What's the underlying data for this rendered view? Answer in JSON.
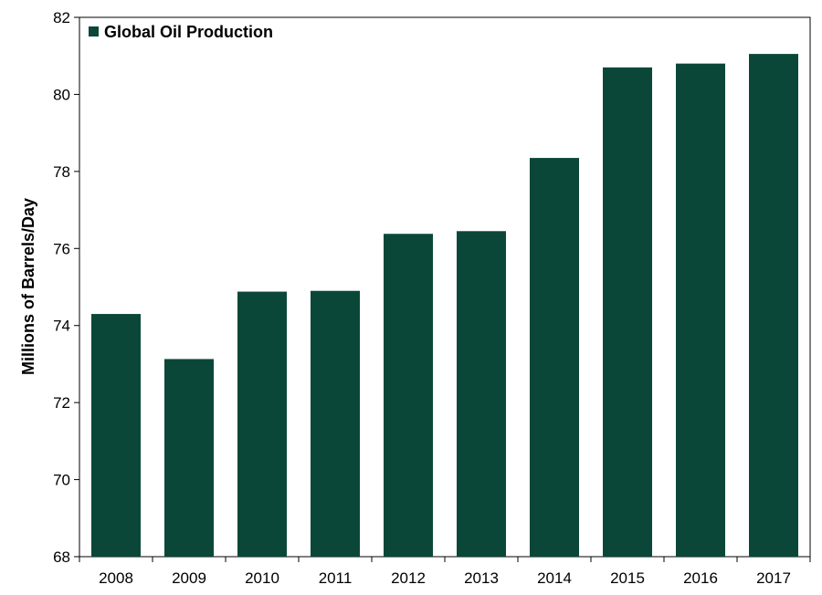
{
  "chart_data": {
    "type": "bar",
    "title": "",
    "xlabel": "",
    "ylabel": "Millions of Barrels/Day",
    "ylim": [
      68,
      82
    ],
    "yticks": [
      68,
      70,
      72,
      74,
      76,
      78,
      80,
      82
    ],
    "grid": false,
    "legend_position": "top-left",
    "categories": [
      "2008",
      "2009",
      "2010",
      "2011",
      "2012",
      "2013",
      "2014",
      "2015",
      "2016",
      "2017"
    ],
    "series": [
      {
        "name": "Global Oil Production",
        "color": "#0b4738",
        "values": [
          74.3,
          73.13,
          74.88,
          74.9,
          76.38,
          76.45,
          78.35,
          80.7,
          80.8,
          81.05
        ]
      }
    ]
  }
}
